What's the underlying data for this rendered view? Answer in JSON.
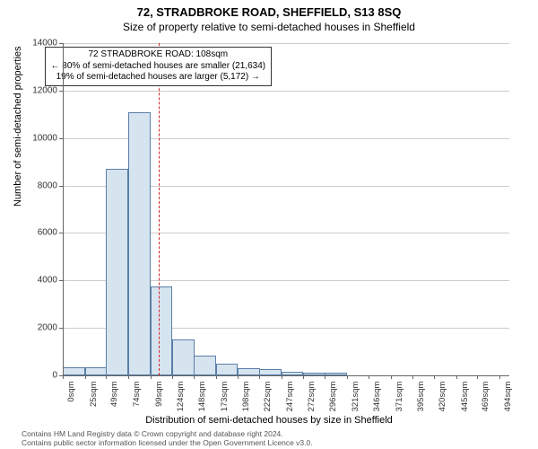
{
  "title_main": "72, STRADBROKE ROAD, SHEFFIELD, S13 8SQ",
  "title_sub": "Size of property relative to semi-detached houses in Sheffield",
  "ylabel": "Number of semi-detached properties",
  "xlabel": "Distribution of semi-detached houses by size in Sheffield",
  "chart": {
    "type": "histogram",
    "background_color": "#ffffff",
    "grid_color": "#cccccc",
    "bar_fill": "#d6e4f0",
    "bar_stroke": "#5a7fa6",
    "bar_stroke_width": 1,
    "ylim": [
      0,
      14000
    ],
    "yticks": [
      0,
      2000,
      4000,
      6000,
      8000,
      10000,
      12000,
      14000
    ],
    "xlim": [
      0,
      505
    ],
    "xticks": [
      0,
      25,
      49,
      74,
      99,
      124,
      148,
      173,
      198,
      222,
      247,
      272,
      296,
      321,
      346,
      371,
      395,
      420,
      445,
      469,
      494
    ],
    "xtick_suffix": "sqm",
    "bin_width": 25,
    "bins_start": [
      0,
      25,
      49,
      74,
      99,
      124,
      148,
      173,
      198,
      222,
      247,
      272,
      296
    ],
    "counts": [
      350,
      350,
      8700,
      11100,
      3750,
      1500,
      850,
      500,
      300,
      250,
      150,
      100,
      100
    ],
    "marker_line": {
      "x": 108,
      "color": "#d62728",
      "dash": "4,3",
      "width": 1
    },
    "annotation": {
      "lines": [
        "72 STRADBROKE ROAD: 108sqm",
        "← 80% of semi-detached houses are smaller (21,634)",
        "19% of semi-detached houses are larger (5,172) →"
      ],
      "border_color": "#333333",
      "fontsize": 10
    }
  },
  "footer_lines": [
    "Contains HM Land Registry data © Crown copyright and database right 2024.",
    "Contains public sector information licensed under the Open Government Licence v3.0."
  ],
  "colors": {
    "text": "#333333",
    "footer": "#555555"
  },
  "fonts": {
    "title_main_size": 13,
    "title_sub_size": 12,
    "axis_label_size": 11,
    "tick_size": 10,
    "annotation_size": 10,
    "footer_size": 8.5
  }
}
